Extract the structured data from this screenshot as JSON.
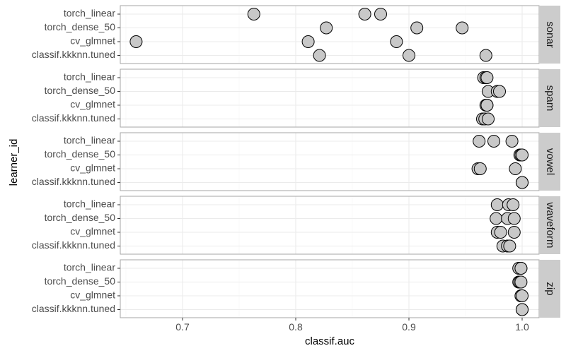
{
  "chart_data": {
    "type": "scatter",
    "xlabel": "classif.auc",
    "ylabel": "learner_id",
    "xlim": [
      0.645,
      1.015
    ],
    "x_ticks": [
      0.7,
      0.8,
      0.9,
      1.0
    ],
    "x_tick_labels": [
      "0.7",
      "0.8",
      "0.9",
      "1.0"
    ],
    "learners": [
      "torch_linear",
      "torch_dense_50",
      "cv_glmnet",
      "classif.kkknn.tuned"
    ],
    "grid": true,
    "facets": [
      {
        "name": "sonar",
        "points": {
          "torch_linear": [
            0.763,
            0.861,
            0.875
          ],
          "torch_dense_50": [
            0.827,
            0.907,
            0.947
          ],
          "cv_glmnet": [
            0.659,
            0.811,
            0.889
          ],
          "classif.kkknn.tuned": [
            0.821,
            0.9,
            0.968
          ]
        }
      },
      {
        "name": "spam",
        "points": {
          "torch_linear": [
            0.966,
            0.968,
            0.969
          ],
          "torch_dense_50": [
            0.97,
            0.978,
            0.98
          ],
          "cv_glmnet": [
            0.968,
            0.969,
            0.969
          ],
          "classif.kkknn.tuned": [
            0.965,
            0.967,
            0.97
          ]
        }
      },
      {
        "name": "vowel",
        "points": {
          "torch_linear": [
            0.962,
            0.975,
            0.991
          ],
          "torch_dense_50": [
            0.998,
            0.999,
            1.0
          ],
          "cv_glmnet": [
            0.961,
            0.963,
            0.994
          ],
          "classif.kkknn.tuned": [
            1.0,
            1.0,
            1.0
          ]
        }
      },
      {
        "name": "waveform",
        "points": {
          "torch_linear": [
            0.978,
            0.988,
            0.992
          ],
          "torch_dense_50": [
            0.977,
            0.987,
            0.993
          ],
          "cv_glmnet": [
            0.978,
            0.981,
            0.993
          ],
          "classif.kkknn.tuned": [
            0.983,
            0.987,
            0.989
          ]
        }
      },
      {
        "name": "zip",
        "points": {
          "torch_linear": [
            0.997,
            0.999,
            0.999
          ],
          "torch_dense_50": [
            0.997,
            0.998,
            0.999
          ],
          "cv_glmnet": [
            0.999,
            0.999,
            1.0
          ],
          "classif.kkknn.tuned": [
            1.0,
            1.0,
            1.0
          ]
        }
      }
    ],
    "colors": {
      "point_fill": "#c8c8c8",
      "point_stroke": "#000000",
      "strip_fill": "#cccccc",
      "grid_major": "#ebebeb",
      "grid_minor": "#f5f5f5",
      "panel_border": "#a6a6a6"
    }
  }
}
